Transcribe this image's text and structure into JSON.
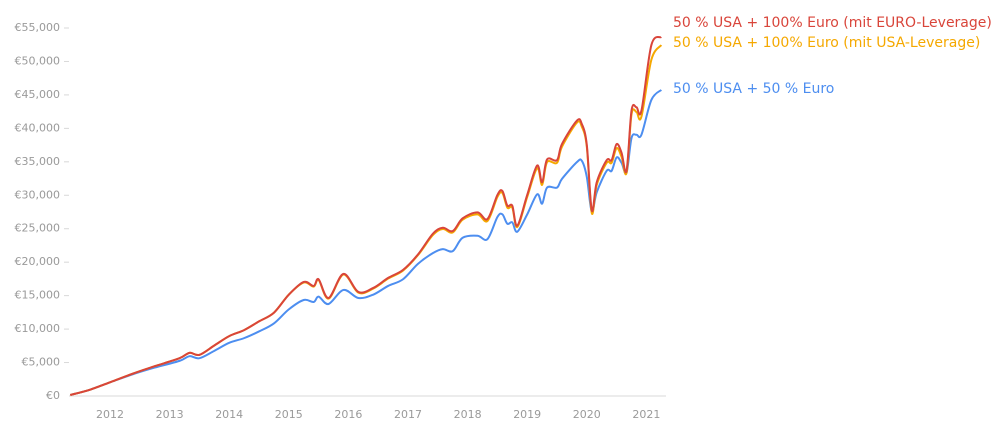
{
  "chart_data": {
    "type": "line",
    "title": "",
    "xlabel": "",
    "ylabel": "",
    "ylim": [
      0,
      55000
    ],
    "y_ticks": [
      "€0",
      "€5,000",
      "€10,000",
      "€15,000",
      "€20,000",
      "€25,000",
      "€30,000",
      "€35,000",
      "€40,000",
      "€45,000",
      "€50,000",
      "€55,000"
    ],
    "y_tick_values": [
      0,
      5000,
      10000,
      15000,
      20000,
      25000,
      30000,
      35000,
      40000,
      45000,
      50000,
      55000
    ],
    "x_ticks": [
      "2012",
      "2013",
      "2014",
      "2015",
      "2016",
      "2017",
      "2018",
      "2019",
      "2020",
      "2021"
    ],
    "grid": false,
    "legend_placement": "right, at line ends",
    "x": [
      "2011-05",
      "2011-09",
      "2012-01",
      "2012-06",
      "2012-10",
      "2013-03",
      "2013-05",
      "2013-07",
      "2013-10",
      "2014-01",
      "2014-04",
      "2014-07",
      "2014-10",
      "2015-01",
      "2015-04",
      "2015-06",
      "2015-07",
      "2015-09",
      "2015-12",
      "2016-03",
      "2016-06",
      "2016-09",
      "2016-12",
      "2017-03",
      "2017-06",
      "2017-08",
      "2017-10",
      "2017-12",
      "2018-03",
      "2018-05",
      "2018-07",
      "2018-08",
      "2018-09",
      "2018-10",
      "2018-11",
      "2019-01",
      "2019-03",
      "2019-04",
      "2019-05",
      "2019-07",
      "2019-08",
      "2019-11",
      "2019-12",
      "2020-01",
      "2020-02",
      "2020-03",
      "2020-05",
      "2020-06",
      "2020-07",
      "2020-08",
      "2020-09",
      "2020-10",
      "2020-11",
      "2020-12",
      "2021-02",
      "2021-04"
    ],
    "series": [
      {
        "name": "50 % USA + 50 % Euro",
        "color": "#4d8ef0",
        "values": [
          0,
          800,
          1900,
          3200,
          4100,
          5100,
          5800,
          5500,
          6600,
          7800,
          8500,
          9500,
          10700,
          12800,
          14200,
          13900,
          14700,
          13600,
          15700,
          14500,
          15000,
          16300,
          17300,
          19600,
          21200,
          21800,
          21500,
          23500,
          23800,
          23300,
          26600,
          27000,
          25600,
          25800,
          24400,
          27000,
          30000,
          28600,
          31000,
          31000,
          32300,
          34800,
          35000,
          32600,
          27400,
          30300,
          33500,
          33500,
          35500,
          34700,
          33200,
          38400,
          38900,
          38900,
          44100,
          45600
        ]
      },
      {
        "name": "50 % USA + 100% Euro (mit USA-Leverage)",
        "color": "#f5a800",
        "values": [
          0,
          800,
          1900,
          3300,
          4300,
          5500,
          6300,
          6000,
          7400,
          8800,
          9700,
          11000,
          12300,
          15000,
          16800,
          16200,
          17200,
          14400,
          18000,
          15300,
          15900,
          17400,
          18600,
          20900,
          23900,
          24800,
          24300,
          26200,
          27000,
          26000,
          29600,
          30200,
          28000,
          28000,
          25100,
          29600,
          33900,
          31400,
          34800,
          34700,
          37100,
          40700,
          40100,
          37100,
          27200,
          31400,
          34700,
          34700,
          36900,
          35600,
          33200,
          41900,
          42300,
          41600,
          50100,
          52300
        ]
      },
      {
        "name": "50 % USA + 100% Euro (mit EURO-Leverage)",
        "color": "#d9453a",
        "values": [
          0,
          800,
          1900,
          3300,
          4300,
          5500,
          6300,
          6000,
          7400,
          8800,
          9700,
          11000,
          12300,
          15000,
          16900,
          16300,
          17300,
          14500,
          18100,
          15400,
          16000,
          17500,
          18700,
          21000,
          24100,
          25000,
          24500,
          26400,
          27300,
          26300,
          29900,
          30500,
          28300,
          28300,
          25300,
          29900,
          34300,
          31800,
          35200,
          35100,
          37500,
          41000,
          40500,
          37400,
          27600,
          31800,
          35100,
          35100,
          37500,
          36200,
          33500,
          42500,
          43000,
          42500,
          52300,
          53500
        ]
      }
    ]
  }
}
